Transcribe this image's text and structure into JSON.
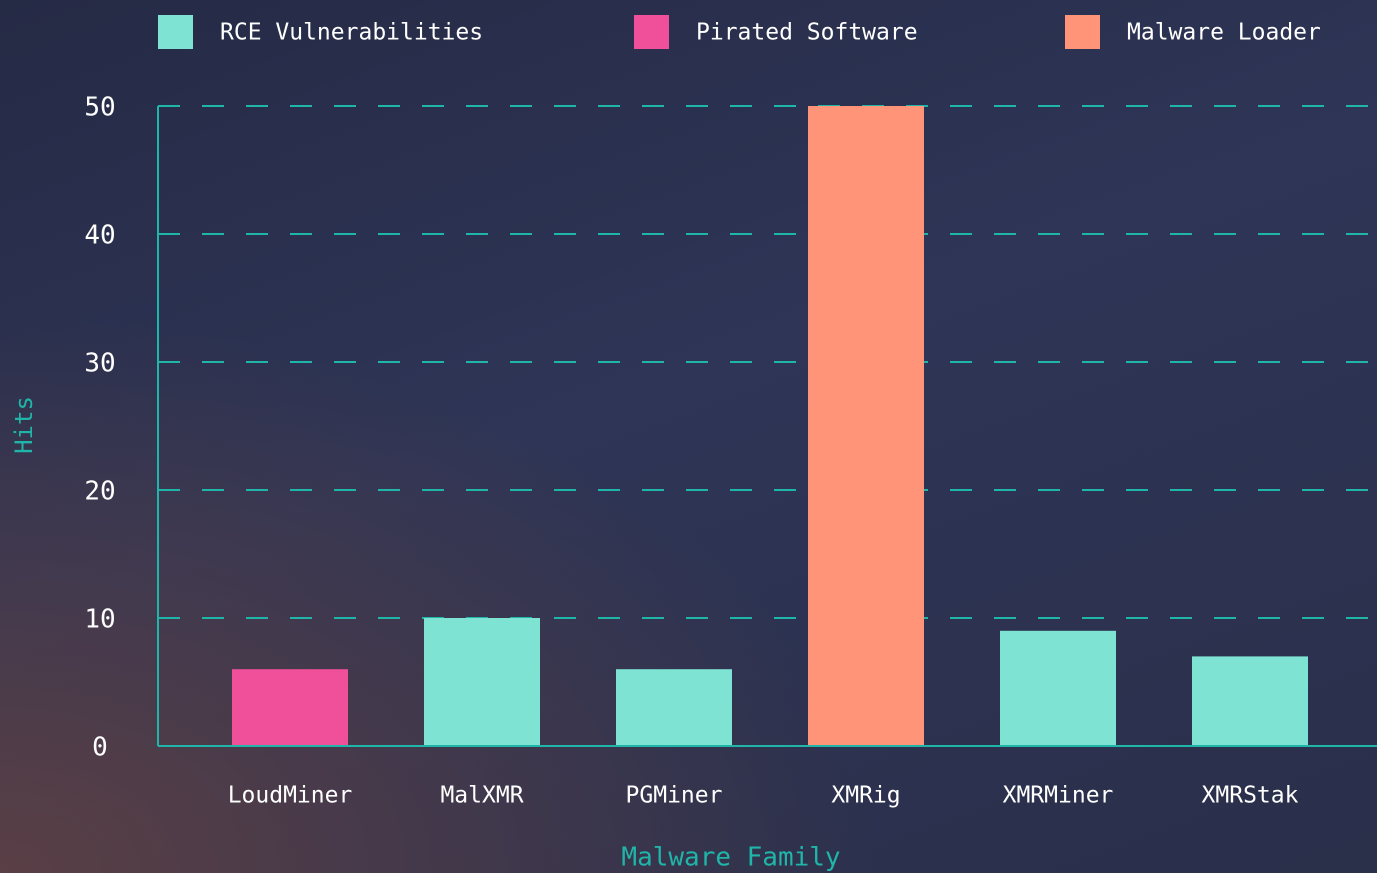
{
  "chart_data": {
    "type": "bar",
    "x_label": "Malware Family",
    "y_label": "Hits",
    "categories": [
      "LoudMiner",
      "MalXMR",
      "PGMiner",
      "XMRig",
      "XMRMiner",
      "XMRStak"
    ],
    "series": [
      {
        "name": "RCE Vulnerabilities",
        "color": "#7fe3d4",
        "values": [
          null,
          10,
          6,
          null,
          9,
          7
        ]
      },
      {
        "name": "Pirated Software",
        "color": "#f0509a",
        "values": [
          6,
          null,
          null,
          null,
          null,
          null
        ]
      },
      {
        "name": "Malware Loader",
        "color": "#ff9478",
        "values": [
          null,
          null,
          null,
          50,
          null,
          null
        ]
      }
    ],
    "ylim": [
      0,
      50
    ],
    "yticks": [
      0,
      10,
      20,
      30,
      40,
      50
    ],
    "grid": true
  }
}
